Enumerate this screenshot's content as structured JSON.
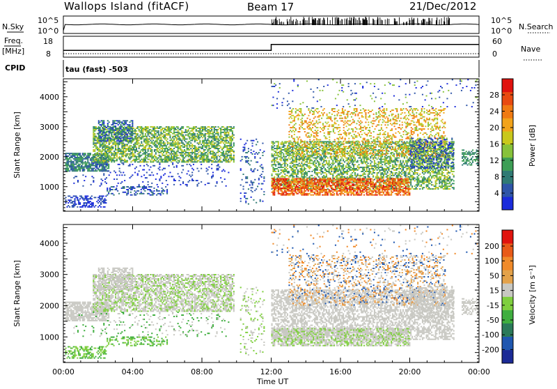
{
  "chart_data": {
    "type": "heatmap",
    "header": {
      "station": "Wallops Island (fitACF)",
      "beam": "Beam 17",
      "date": "21/Dec/2012"
    },
    "top_panels": {
      "nsky_label": "N.Sky",
      "nsearch_label": "N.Search",
      "noise_ticks": [
        "10^5",
        "10^0"
      ],
      "freq_label": "Freq.",
      "freq_unit": "[MHz]",
      "freq_ticks": [
        "18",
        "8"
      ],
      "nave_label": "Nave",
      "nave_ticks": [
        "60",
        "0"
      ],
      "cpid_label": "CPID",
      "cpid_value": "tau (fast) -503",
      "freq_mhz": [
        {
          "from_hour": 0,
          "to_hour": 12,
          "value": 11.5
        },
        {
          "from_hour": 12,
          "to_hour": 24,
          "value": 16
        }
      ]
    },
    "x_axis": {
      "title": "Time UT",
      "ticks": [
        "00:00",
        "04:00",
        "08:00",
        "12:00",
        "16:00",
        "20:00",
        "00:00"
      ],
      "range_hours": [
        0,
        24
      ]
    },
    "power_panel": {
      "ylabel": "Slant Range [km]",
      "yticks": [
        "1000",
        "2000",
        "3000",
        "4000"
      ],
      "yrange_km": [
        180,
        4600
      ],
      "colorbar_label": "Power [dB]",
      "colorbar_ticks": [
        "4",
        "8",
        "12",
        "16",
        "20",
        "24",
        "28"
      ],
      "colorbar_colors": [
        "#1a2bdb",
        "#2e55a8",
        "#2f7a74",
        "#3d9e55",
        "#87c23a",
        "#c9c81c",
        "#f2a31a",
        "#f07a12",
        "#e84a10",
        "#e0120e"
      ]
    },
    "velocity_panel": {
      "ylabel": "Slant Range [km]",
      "yticks": [
        "1000",
        "2000",
        "3000",
        "4000"
      ],
      "yrange_km": [
        180,
        4600
      ],
      "colorbar_label": "Velocity [m s⁻¹]",
      "colorbar_ticks": [
        "200",
        "100",
        "50",
        "15",
        "-15",
        "-50",
        "-100",
        "-200"
      ],
      "colorbar_colors": [
        "#1b2a96",
        "#1f57b0",
        "#2b7a5a",
        "#3fae3f",
        "#7fcf3e",
        "#c8c8c2",
        "#e3a24a",
        "#f08a2a",
        "#e85a18",
        "#e0140e"
      ]
    }
  }
}
